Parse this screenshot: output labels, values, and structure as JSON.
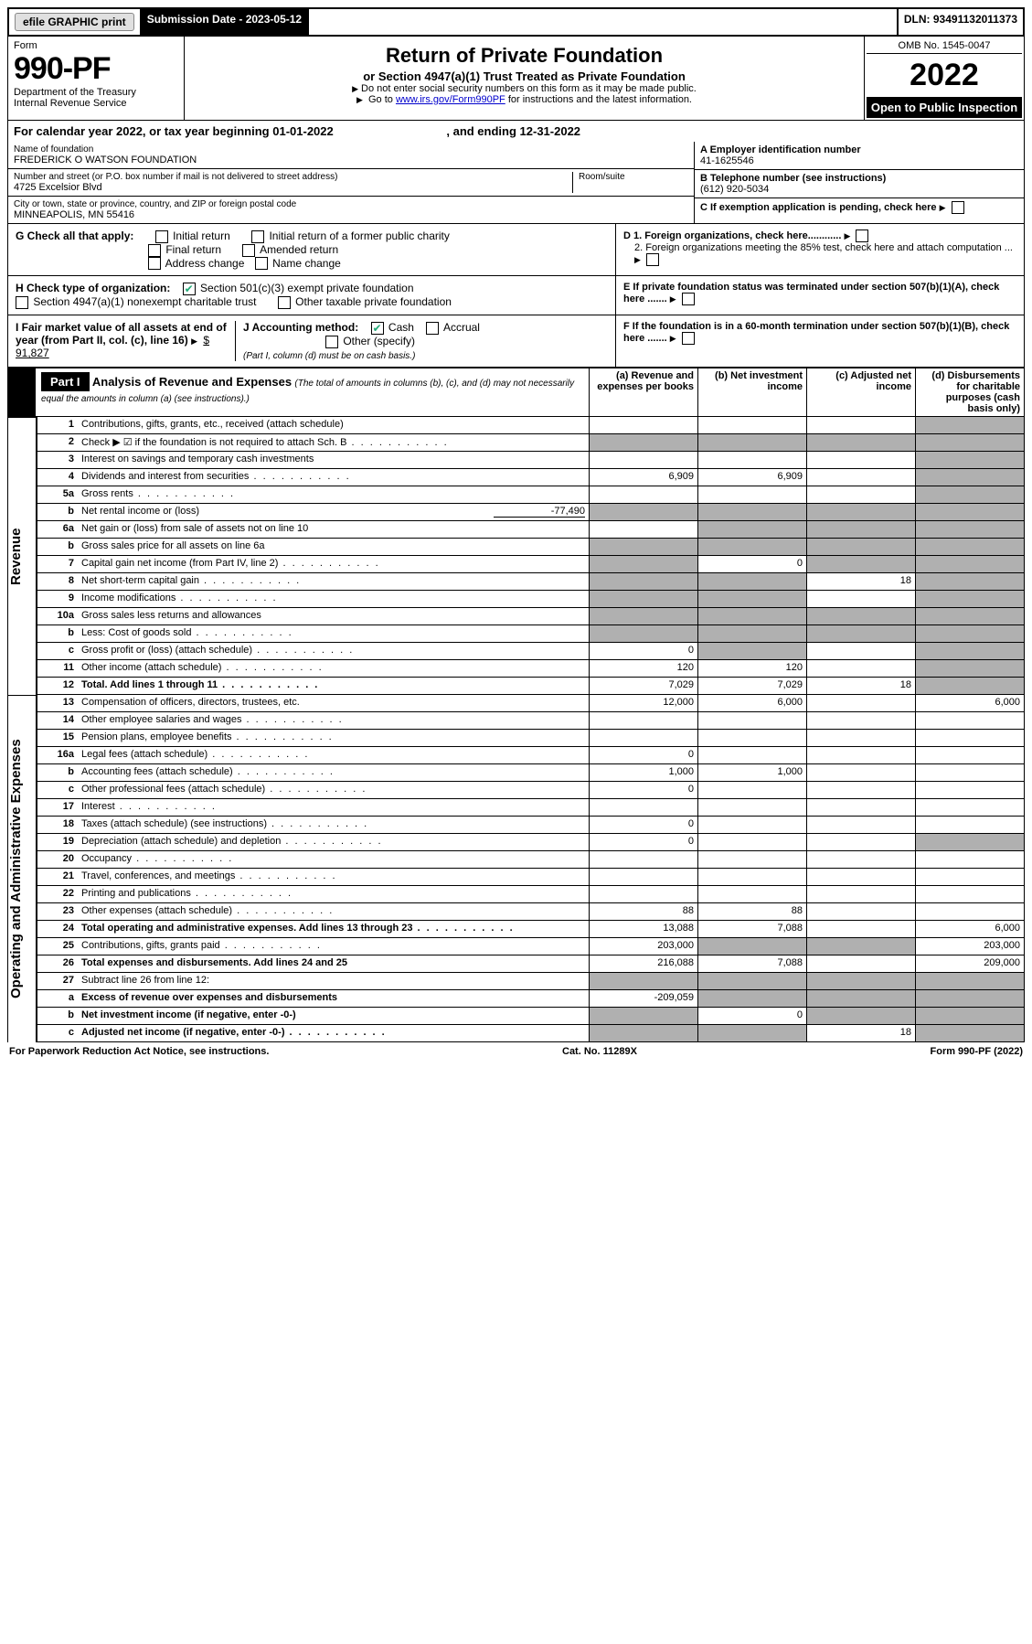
{
  "topbar": {
    "efile": "efile GRAPHIC print",
    "submission_label": "Submission Date - 2023-05-12",
    "dln": "DLN: 93491132011373"
  },
  "header": {
    "form_label": "Form",
    "form_number": "990-PF",
    "dept": "Department of the Treasury",
    "irs": "Internal Revenue Service",
    "title": "Return of Private Foundation",
    "subtitle": "or Section 4947(a)(1) Trust Treated as Private Foundation",
    "note1": "Do not enter social security numbers on this form as it may be made public.",
    "note2_pre": "Go to ",
    "note2_link": "www.irs.gov/Form990PF",
    "note2_post": " for instructions and the latest information.",
    "omb": "OMB No. 1545-0047",
    "year": "2022",
    "open_public": "Open to Public Inspection"
  },
  "calendar": {
    "text_pre": "For calendar year 2022, or tax year beginning ",
    "begin": "01-01-2022",
    "mid": " , and ending ",
    "end": "12-31-2022"
  },
  "info": {
    "name_label": "Name of foundation",
    "name": "FREDERICK O WATSON FOUNDATION",
    "addr_label": "Number and street (or P.O. box number if mail is not delivered to street address)",
    "addr": "4725 Excelsior Blvd",
    "room_label": "Room/suite",
    "city_label": "City or town, state or province, country, and ZIP or foreign postal code",
    "city": "MINNEAPOLIS, MN  55416",
    "a_label": "A Employer identification number",
    "ein": "41-1625546",
    "b_label": "B Telephone number (see instructions)",
    "phone": "(612) 920-5034",
    "c_label": "C If exemption application is pending, check here",
    "d1": "D 1. Foreign organizations, check here............",
    "d2": "2. Foreign organizations meeting the 85% test, check here and attach computation ...",
    "e_label": "E  If private foundation status was terminated under section 507(b)(1)(A), check here .......",
    "f_label": "F  If the foundation is in a 60-month termination under section 507(b)(1)(B), check here .......",
    "g_label": "G Check all that apply:",
    "g_opts": [
      "Initial return",
      "Initial return of a former public charity",
      "Final return",
      "Amended return",
      "Address change",
      "Name change"
    ],
    "h_label": "H Check type of organization:",
    "h_opt1": "Section 501(c)(3) exempt private foundation",
    "h_opt2": "Section 4947(a)(1) nonexempt charitable trust",
    "h_opt3": "Other taxable private foundation",
    "i_label": "I Fair market value of all assets at end of year (from Part II, col. (c), line 16)",
    "i_val": "$  91,827",
    "j_label": "J Accounting method:",
    "j_cash": "Cash",
    "j_accrual": "Accrual",
    "j_other": "Other (specify)",
    "j_note": "(Part I, column (d) must be on cash basis.)"
  },
  "part1": {
    "label": "Part I",
    "title": "Analysis of Revenue and Expenses",
    "title_note": "(The total of amounts in columns (b), (c), and (d) may not necessarily equal the amounts in column (a) (see instructions).)",
    "col_a": "(a)  Revenue and expenses per books",
    "col_b": "(b)  Net investment income",
    "col_c": "(c)  Adjusted net income",
    "col_d": "(d)  Disbursements for charitable purposes (cash basis only)"
  },
  "sections": {
    "revenue": "Revenue",
    "expenses": "Operating and Administrative Expenses"
  },
  "lines": [
    {
      "n": "1",
      "label": "Contributions, gifts, grants, etc., received (attach schedule)",
      "a": "",
      "b": "",
      "c": "",
      "d": "",
      "d_shade": true
    },
    {
      "n": "2",
      "label": "Check ▶ ☑ if the foundation is not required to attach Sch. B",
      "dots": true,
      "a": "",
      "b": "",
      "c": "",
      "d": "",
      "all_shade": true
    },
    {
      "n": "3",
      "label": "Interest on savings and temporary cash investments",
      "a": "",
      "b": "",
      "c": "",
      "d": "",
      "d_shade": true
    },
    {
      "n": "4",
      "label": "Dividends and interest from securities",
      "dots": true,
      "a": "6,909",
      "b": "6,909",
      "c": "",
      "d": "",
      "d_shade": true
    },
    {
      "n": "5a",
      "label": "Gross rents",
      "dots": true,
      "a": "",
      "b": "",
      "c": "",
      "d": "",
      "d_shade": true
    },
    {
      "n": "b",
      "label": "Net rental income or (loss)",
      "inline": "-77,490",
      "a": "",
      "b": "",
      "c": "",
      "d": "",
      "ab_shade": true,
      "d_shade": true,
      "c_shade": true
    },
    {
      "n": "6a",
      "label": "Net gain or (loss) from sale of assets not on line 10",
      "a": "",
      "b": "",
      "c": "",
      "d": "",
      "bcd_shade": true
    },
    {
      "n": "b",
      "label": "Gross sales price for all assets on line 6a",
      "underline": true,
      "a": "",
      "b": "",
      "c": "",
      "d": "",
      "all_shade": true
    },
    {
      "n": "7",
      "label": "Capital gain net income (from Part IV, line 2)",
      "dots": true,
      "a": "",
      "b": "0",
      "c": "",
      "d": "",
      "a_shade": true,
      "cd_shade": true
    },
    {
      "n": "8",
      "label": "Net short-term capital gain",
      "dots": true,
      "a": "",
      "b": "",
      "c": "18",
      "d": "",
      "ab_shade": true,
      "d_shade": true
    },
    {
      "n": "9",
      "label": "Income modifications",
      "dots": true,
      "a": "",
      "b": "",
      "c": "",
      "d": "",
      "ab_shade": true,
      "d_shade": true
    },
    {
      "n": "10a",
      "label": "Gross sales less returns and allowances",
      "box": true,
      "a": "",
      "b": "",
      "c": "",
      "d": "",
      "all_shade": true
    },
    {
      "n": "b",
      "label": "Less: Cost of goods sold",
      "dots": true,
      "box": true,
      "a": "",
      "b": "",
      "c": "",
      "d": "",
      "all_shade": true
    },
    {
      "n": "c",
      "label": "Gross profit or (loss) (attach schedule)",
      "dots": true,
      "a": "0",
      "b": "",
      "c": "",
      "d": "",
      "b_shade": true,
      "d_shade": true
    },
    {
      "n": "11",
      "label": "Other income (attach schedule)",
      "dots": true,
      "a": "120",
      "b": "120",
      "c": "",
      "d": "",
      "d_shade": true
    },
    {
      "n": "12",
      "label": "Total. Add lines 1 through 11",
      "dots": true,
      "bold": true,
      "a": "7,029",
      "b": "7,029",
      "c": "18",
      "d": "",
      "d_shade": true
    }
  ],
  "exp_lines": [
    {
      "n": "13",
      "label": "Compensation of officers, directors, trustees, etc.",
      "a": "12,000",
      "b": "6,000",
      "c": "",
      "d": "6,000"
    },
    {
      "n": "14",
      "label": "Other employee salaries and wages",
      "dots": true,
      "a": "",
      "b": "",
      "c": "",
      "d": ""
    },
    {
      "n": "15",
      "label": "Pension plans, employee benefits",
      "dots": true,
      "a": "",
      "b": "",
      "c": "",
      "d": ""
    },
    {
      "n": "16a",
      "label": "Legal fees (attach schedule)",
      "dots": true,
      "a": "0",
      "b": "",
      "c": "",
      "d": ""
    },
    {
      "n": "b",
      "label": "Accounting fees (attach schedule)",
      "dots": true,
      "a": "1,000",
      "b": "1,000",
      "c": "",
      "d": ""
    },
    {
      "n": "c",
      "label": "Other professional fees (attach schedule)",
      "dots": true,
      "a": "0",
      "b": "",
      "c": "",
      "d": ""
    },
    {
      "n": "17",
      "label": "Interest",
      "dots": true,
      "a": "",
      "b": "",
      "c": "",
      "d": ""
    },
    {
      "n": "18",
      "label": "Taxes (attach schedule) (see instructions)",
      "dots": true,
      "a": "0",
      "b": "",
      "c": "",
      "d": ""
    },
    {
      "n": "19",
      "label": "Depreciation (attach schedule) and depletion",
      "dots": true,
      "a": "0",
      "b": "",
      "c": "",
      "d": "",
      "d_shade": true
    },
    {
      "n": "20",
      "label": "Occupancy",
      "dots": true,
      "a": "",
      "b": "",
      "c": "",
      "d": ""
    },
    {
      "n": "21",
      "label": "Travel, conferences, and meetings",
      "dots": true,
      "a": "",
      "b": "",
      "c": "",
      "d": ""
    },
    {
      "n": "22",
      "label": "Printing and publications",
      "dots": true,
      "a": "",
      "b": "",
      "c": "",
      "d": ""
    },
    {
      "n": "23",
      "label": "Other expenses (attach schedule)",
      "dots": true,
      "a": "88",
      "b": "88",
      "c": "",
      "d": ""
    },
    {
      "n": "24",
      "label": "Total operating and administrative expenses. Add lines 13 through 23",
      "dots": true,
      "bold": true,
      "a": "13,088",
      "b": "7,088",
      "c": "",
      "d": "6,000"
    },
    {
      "n": "25",
      "label": "Contributions, gifts, grants paid",
      "dots": true,
      "a": "203,000",
      "b": "",
      "c": "",
      "d": "203,000",
      "bc_shade": true
    },
    {
      "n": "26",
      "label": "Total expenses and disbursements. Add lines 24 and 25",
      "bold": true,
      "a": "216,088",
      "b": "7,088",
      "c": "",
      "d": "209,000"
    },
    {
      "n": "27",
      "label": "Subtract line 26 from line 12:",
      "a": "",
      "b": "",
      "c": "",
      "d": "",
      "all_shade": true
    },
    {
      "n": "a",
      "label": "Excess of revenue over expenses and disbursements",
      "bold": true,
      "a": "-209,059",
      "b": "",
      "c": "",
      "d": "",
      "bcd_shade": true
    },
    {
      "n": "b",
      "label": "Net investment income (if negative, enter -0-)",
      "bold": true,
      "a": "",
      "b": "0",
      "c": "",
      "d": "",
      "a_shade": true,
      "cd_shade": true
    },
    {
      "n": "c",
      "label": "Adjusted net income (if negative, enter -0-)",
      "dots": true,
      "bold": true,
      "a": "",
      "b": "",
      "c": "18",
      "d": "",
      "ab_shade": true,
      "d_shade": true
    }
  ],
  "footer": {
    "left": "For Paperwork Reduction Act Notice, see instructions.",
    "center": "Cat. No. 11289X",
    "right": "Form 990-PF (2022)"
  }
}
